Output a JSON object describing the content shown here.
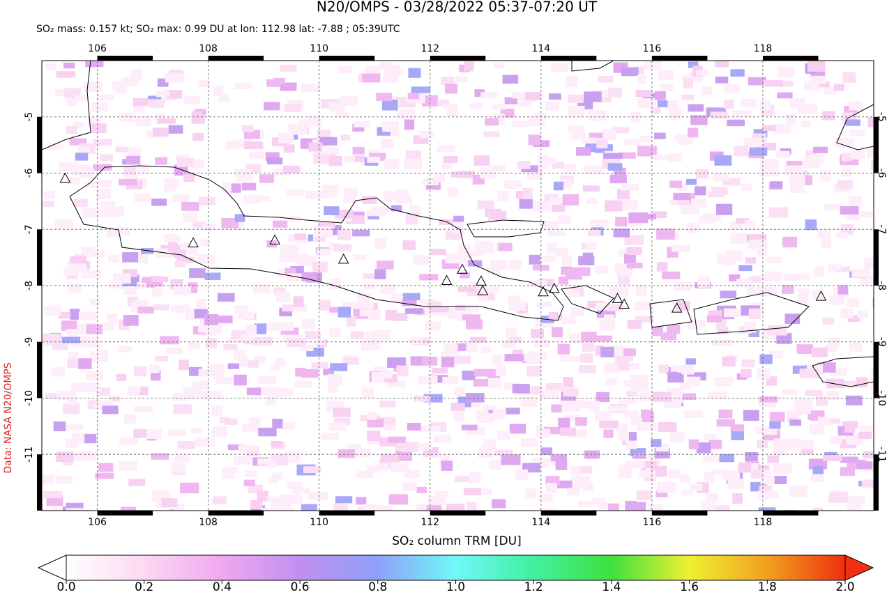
{
  "title": "N20/OMPS - 03/28/2022 05:37-07:20 UT",
  "subtitle": "SO₂ mass: 0.157 kt; SO₂ max: 0.99 DU at lon: 112.98 lat: -7.88 ; 05:39UTC",
  "credit": "Data: NASA N20/OMPS",
  "map": {
    "lonlim": [
      105,
      120
    ],
    "latlim": [
      -12,
      -4
    ],
    "lonticks": [
      106,
      108,
      110,
      112,
      114,
      116,
      118
    ],
    "latticks": [
      -5,
      -6,
      -7,
      -8,
      -9,
      -10,
      -11
    ],
    "volcanoes": [
      {
        "lon": 105.42,
        "lat": -6.1
      },
      {
        "lon": 107.73,
        "lat": -7.25
      },
      {
        "lon": 109.2,
        "lat": -7.2
      },
      {
        "lon": 110.44,
        "lat": -7.54
      },
      {
        "lon": 112.3,
        "lat": -7.92
      },
      {
        "lon": 112.58,
        "lat": -7.72
      },
      {
        "lon": 112.92,
        "lat": -7.93
      },
      {
        "lon": 112.95,
        "lat": -8.1
      },
      {
        "lon": 114.04,
        "lat": -8.12
      },
      {
        "lon": 114.24,
        "lat": -8.06
      },
      {
        "lon": 115.38,
        "lat": -8.24
      },
      {
        "lon": 115.5,
        "lat": -8.34
      },
      {
        "lon": 116.45,
        "lat": -8.41
      },
      {
        "lon": 119.05,
        "lat": -8.2
      }
    ]
  },
  "colorbar": {
    "label": "SO₂ column TRM [DU]",
    "lim": [
      0,
      2
    ],
    "ticks": [
      {
        "value": 0,
        "label": "0.0"
      },
      {
        "value": 0.2,
        "label": "0.2"
      },
      {
        "value": 0.4,
        "label": "0.4"
      },
      {
        "value": 0.6,
        "label": "0.6"
      },
      {
        "value": 0.8,
        "label": "0.8"
      },
      {
        "value": 1,
        "label": "1.0"
      },
      {
        "value": 1.2,
        "label": "1.2"
      },
      {
        "value": 1.4,
        "label": "1.4"
      },
      {
        "value": 1.6,
        "label": "1.6"
      },
      {
        "value": 1.8,
        "label": "1.8"
      },
      {
        "value": 2,
        "label": "2.0"
      }
    ]
  }
}
